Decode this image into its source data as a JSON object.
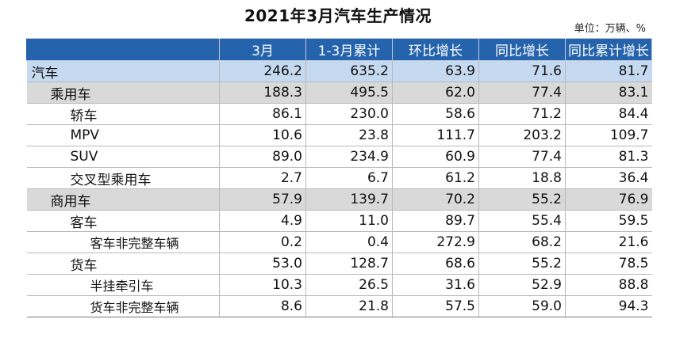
{
  "title": "2021年3月汽车生产情况",
  "unit": "单位：万辆、%",
  "chart_data": {
    "type": "table",
    "title": "2021年3月汽车生产情况",
    "unit": "单位：万辆、%",
    "columns": [
      "",
      "3月",
      "1-3月累计",
      "环比增长",
      "同比增长",
      "同比累计增长"
    ],
    "rows": [
      {
        "name": "汽车",
        "level": 0,
        "values": [
          "246.2",
          "635.2",
          "63.9",
          "71.6",
          "81.7"
        ]
      },
      {
        "name": "乘用车",
        "level": 1,
        "values": [
          "188.3",
          "495.5",
          "62.0",
          "77.4",
          "83.1"
        ]
      },
      {
        "name": "轿车",
        "level": 2,
        "values": [
          "86.1",
          "230.0",
          "58.6",
          "71.2",
          "84.4"
        ]
      },
      {
        "name": "MPV",
        "level": 2,
        "values": [
          "10.6",
          "23.8",
          "111.7",
          "203.2",
          "109.7"
        ]
      },
      {
        "name": "SUV",
        "level": 2,
        "values": [
          "89.0",
          "234.9",
          "60.9",
          "77.4",
          "81.3"
        ]
      },
      {
        "name": "交叉型乘用车",
        "level": 2,
        "values": [
          "2.7",
          "6.7",
          "61.2",
          "18.8",
          "36.4"
        ]
      },
      {
        "name": "商用车",
        "level": 1,
        "values": [
          "57.9",
          "139.7",
          "70.2",
          "55.2",
          "76.9"
        ]
      },
      {
        "name": "客车",
        "level": 2,
        "values": [
          "4.9",
          "11.0",
          "89.7",
          "55.4",
          "59.5"
        ]
      },
      {
        "name": "客车非完整车辆",
        "level": 3,
        "values": [
          "0.2",
          "0.4",
          "272.9",
          "68.2",
          "21.6"
        ]
      },
      {
        "name": "货车",
        "level": 2,
        "values": [
          "53.0",
          "128.7",
          "68.6",
          "55.2",
          "78.5"
        ]
      },
      {
        "name": "半挂牵引车",
        "level": 3,
        "values": [
          "10.3",
          "26.5",
          "31.6",
          "52.9",
          "88.8"
        ]
      },
      {
        "name": "货车非完整车辆",
        "level": 3,
        "values": [
          "8.6",
          "21.8",
          "57.5",
          "59.0",
          "94.3"
        ]
      }
    ]
  },
  "colors": {
    "header_bg": "#2563ad",
    "total_row_bg": "#c5d9f1",
    "category_row_bg": "#d9d9d9"
  }
}
